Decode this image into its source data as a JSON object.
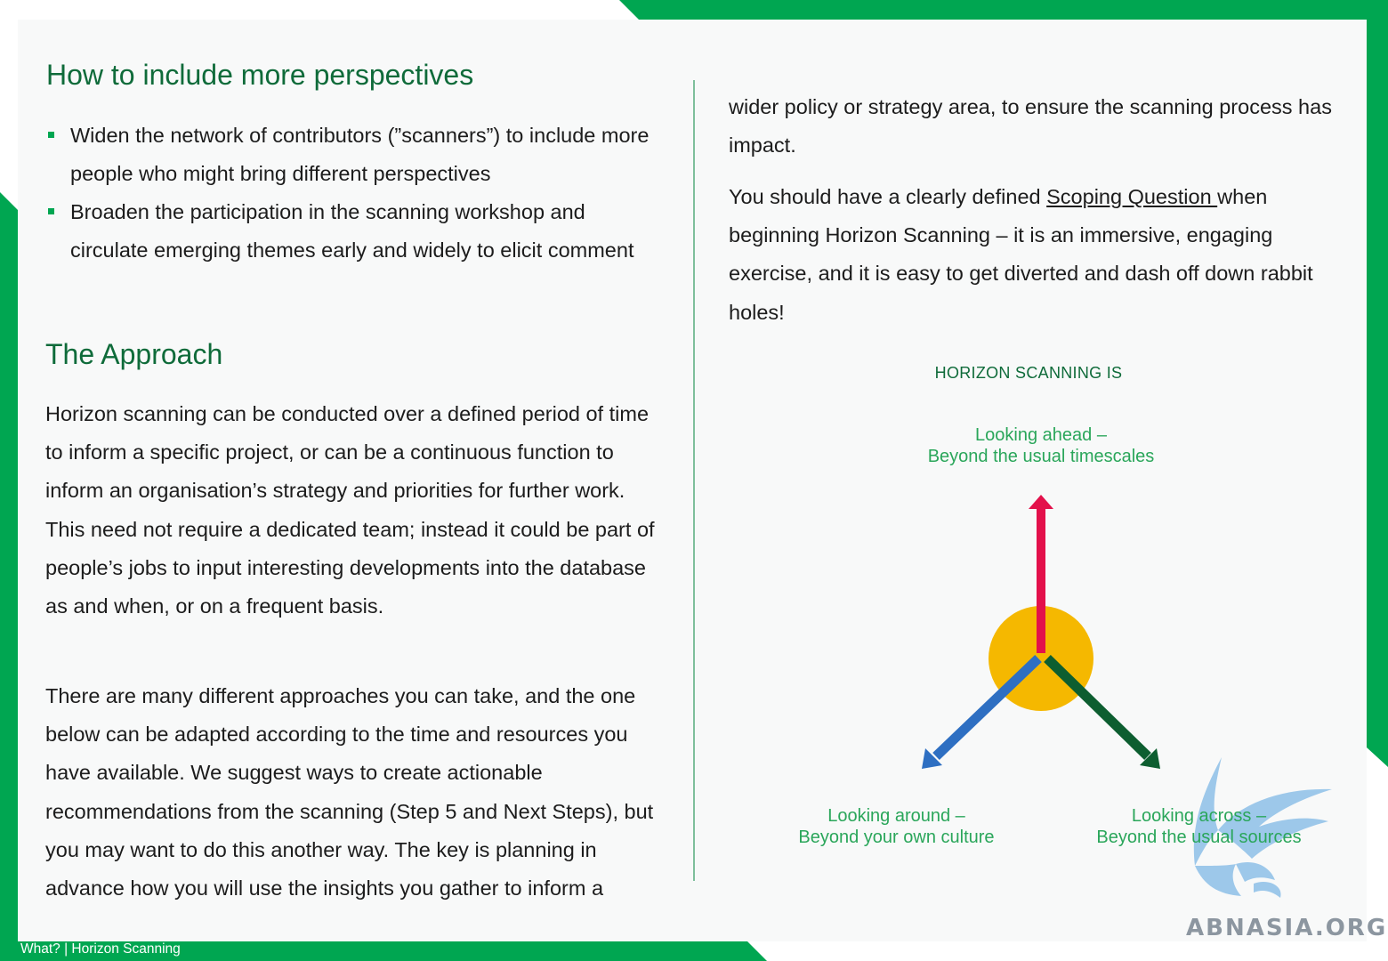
{
  "left": {
    "perspectives_title": "How to include more perspectives",
    "bullets": [
      "Widen the network of contributors (”scanners”) to include more people who might bring different perspectives",
      "Broaden the participation in the scanning workshop and circulate emerging themes early and widely to elicit comment"
    ],
    "approach_title": "The Approach",
    "approach_p1": "Horizon scanning can be conducted over a defined period of time to inform a specific project, or can be a continuous function to inform an organisation’s strategy and priorities for further work. This need not require a dedicated team; instead it could be part of people’s jobs to input interesting developments into the database as and when, or on a frequent basis.",
    "approach_p2": "There are many different approaches you can take, and the one below can be adapted according to the time and resources you have available. We suggest ways to create actionable recommendations from the scanning (Step 5 and Next Steps), but you may want to do this another way. The key is planning in advance how you will use the insights you gather to inform a"
  },
  "right": {
    "continued": "wider policy or strategy area, to ensure the scanning process has impact.",
    "p2_before": "You should have a clearly defined ",
    "p2_link": "Scoping Question ",
    "p2_after": "when beginning Horizon Scanning – it is an immersive, engaging exercise, and it is easy to get diverted and dash off down rabbit holes!"
  },
  "diagram": {
    "title": "HORIZON SCANNING IS",
    "ahead": [
      "Looking ahead –",
      "Beyond the usual timescales"
    ],
    "around": [
      "Looking around –",
      "Beyond your own culture"
    ],
    "across": [
      "Looking across –",
      "Beyond the usual sources"
    ],
    "colors": {
      "circle": "#f5b800",
      "ahead_arrow": "#e3114b",
      "around_arrow": "#2e6fc2",
      "across_arrow": "#0d5e30"
    }
  },
  "footer": "What? |  Horizon Scanning",
  "watermark": "ABNASIA.ORG",
  "colors": {
    "brand_green": "#00a651",
    "heading_green": "#0f6b3a"
  }
}
